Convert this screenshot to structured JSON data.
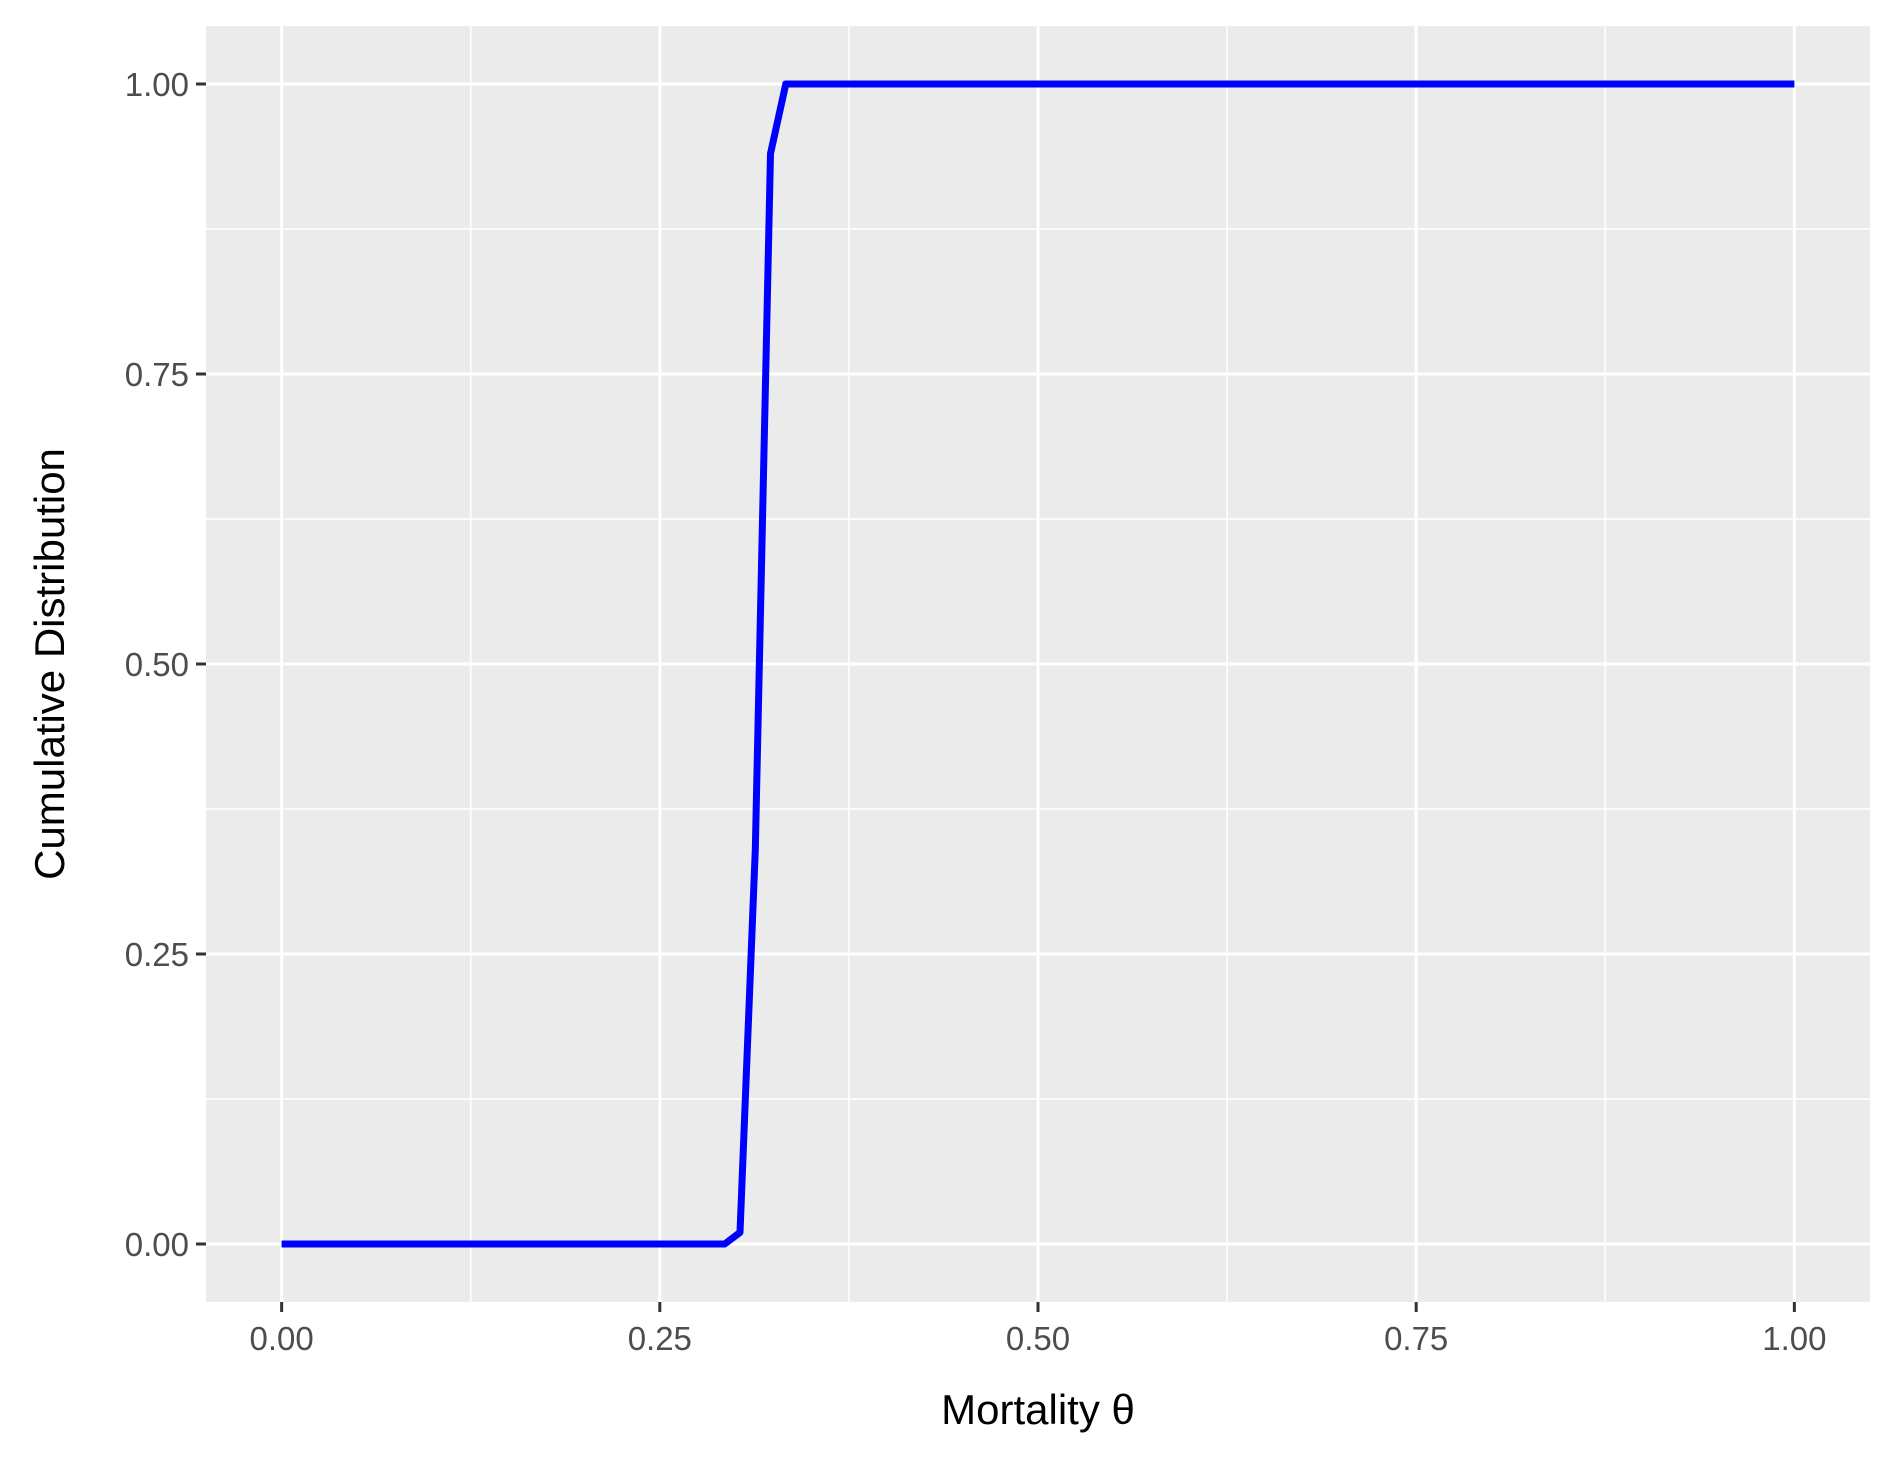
{
  "chart_data": {
    "type": "line",
    "title": "",
    "xlabel": "Mortality θ",
    "ylabel": "Cumulative Distribution",
    "xlim": [
      -0.05,
      1.05
    ],
    "ylim": [
      -0.05,
      1.05
    ],
    "x_ticks": [
      0,
      0.25,
      0.5,
      0.75,
      1
    ],
    "x_tick_labels": [
      "0.00",
      "0.25",
      "0.50",
      "0.75",
      "1.00"
    ],
    "y_ticks": [
      0,
      0.25,
      0.5,
      0.75,
      1
    ],
    "y_tick_labels": [
      "0.00",
      "0.25",
      "0.50",
      "0.75",
      "1.00"
    ],
    "grid": true,
    "legend": "none",
    "series": [
      {
        "color": "#0000ff",
        "x": [
          0,
          0.2929,
          0.303,
          0.3131,
          0.3232,
          0.3333,
          0.3434,
          0.4,
          0.5,
          0.75,
          1.0
        ],
        "y": [
          0,
          0,
          0.01,
          0.34,
          0.94,
          1.0,
          1.0,
          1.0,
          1.0,
          1.0,
          1.0
        ]
      }
    ],
    "colors": {
      "panel_background": "#ebebeb",
      "grid_line": "#ffffff",
      "tick_text": "#4d4d4d",
      "axis_text": "#000000",
      "tick_mark": "#333333"
    }
  }
}
